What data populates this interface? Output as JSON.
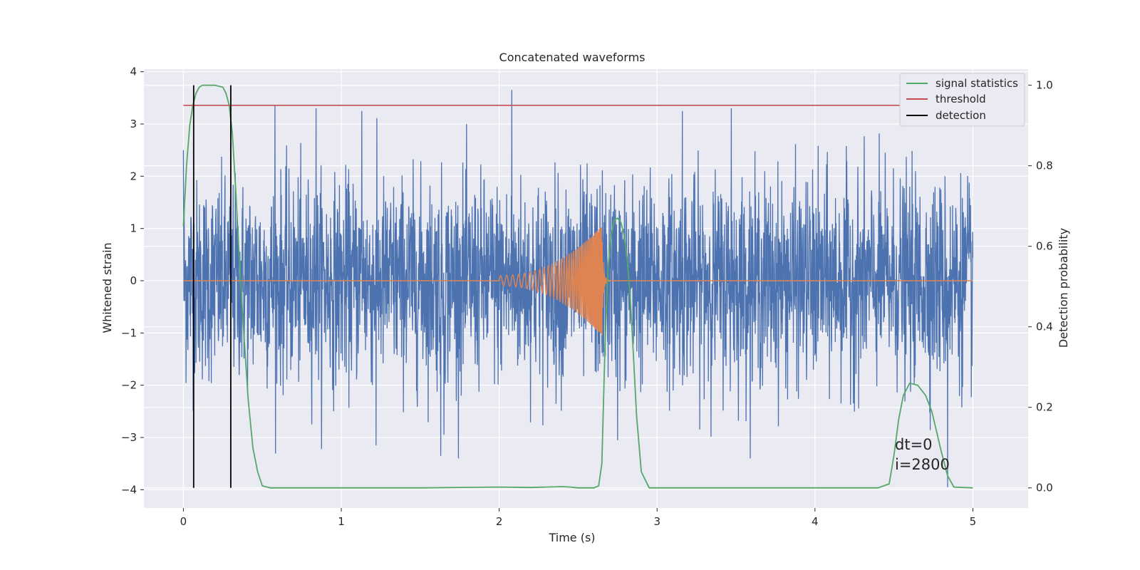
{
  "chart_data": {
    "type": "line",
    "title": "Concatenated waveforms",
    "xlabel": "Time (s)",
    "ylabel": "Whitened strain",
    "y2label": "Detection probability",
    "xlim": [
      -0.25,
      5.35
    ],
    "ylim": [
      -4.35,
      4.05
    ],
    "y2lim": [
      -0.05,
      1.04
    ],
    "x_ticks": [
      "0",
      "1",
      "2",
      "3",
      "4",
      "5"
    ],
    "y_ticks": [
      "4",
      "3",
      "2",
      "1",
      "0",
      "−1",
      "−2",
      "−3",
      "−4"
    ],
    "y2_ticks": [
      "1.0",
      "0.8",
      "0.6",
      "0.4",
      "0.2",
      "0.0"
    ],
    "grid": true,
    "legend_position": "top-right",
    "background": "#eaeaf2",
    "colors": {
      "strain": "#4c72b0",
      "waveform": "#dd8452",
      "signal_statistics": "#55a868",
      "threshold": "#c44e52",
      "detection": "#000000"
    },
    "series": [
      {
        "name": "",
        "axis": "left",
        "description_type": "noise",
        "x_range": [
          0,
          5
        ],
        "envelope_y": [
          -3.4,
          3.7
        ],
        "peaks": [
          [
            0.0,
            2.5
          ],
          [
            0.58,
            3.35
          ],
          [
            0.84,
            3.3
          ],
          [
            1.13,
            3.25
          ],
          [
            2.08,
            3.65
          ],
          [
            3.16,
            3.25
          ],
          [
            3.47,
            3.3
          ],
          [
            4.84,
            -3.95
          ],
          [
            1.22,
            -3.15
          ],
          [
            1.63,
            -3.35
          ],
          [
            2.75,
            -3.05
          ],
          [
            1.65,
            -2.95
          ]
        ]
      },
      {
        "name": "",
        "axis": "left",
        "description_type": "chirp",
        "chirp": {
          "start": 2.0,
          "merger": 2.65,
          "end": 5.0,
          "start_amp": 0.1,
          "peak_amp": 1.05,
          "start_freq": 26,
          "end_freq": 160
        }
      },
      {
        "name": "signal statistics",
        "axis": "right",
        "x": [
          0.0,
          0.02,
          0.04,
          0.06,
          0.08,
          0.1,
          0.12,
          0.15,
          0.2,
          0.25,
          0.27,
          0.29,
          0.31,
          0.33,
          0.35,
          0.38,
          0.41,
          0.44,
          0.47,
          0.5,
          0.55,
          1.0,
          1.5,
          2.0,
          2.2,
          2.4,
          2.45,
          2.5,
          2.6,
          2.63,
          2.65,
          2.67,
          2.69,
          2.71,
          2.73,
          2.75,
          2.77,
          2.79,
          2.81,
          2.83,
          2.85,
          2.87,
          2.9,
          2.95,
          3.0,
          3.5,
          4.0,
          4.4,
          4.47,
          4.5,
          4.53,
          4.56,
          4.6,
          4.65,
          4.7,
          4.74,
          4.77,
          4.8,
          4.84,
          4.88,
          5.0
        ],
        "y": [
          0.65,
          0.8,
          0.9,
          0.95,
          0.98,
          0.995,
          1.0,
          1.0,
          1.0,
          0.995,
          0.98,
          0.95,
          0.88,
          0.75,
          0.6,
          0.4,
          0.22,
          0.1,
          0.04,
          0.005,
          0.0,
          0.0,
          0.0,
          0.002,
          0.001,
          0.003,
          0.002,
          0.0,
          0.0,
          0.005,
          0.06,
          0.35,
          0.55,
          0.63,
          0.665,
          0.67,
          0.66,
          0.63,
          0.57,
          0.47,
          0.33,
          0.18,
          0.04,
          0.0,
          0.0,
          0.0,
          0.0,
          0.0,
          0.01,
          0.08,
          0.17,
          0.23,
          0.26,
          0.255,
          0.23,
          0.19,
          0.14,
          0.09,
          0.03,
          0.002,
          0.0
        ]
      },
      {
        "name": "threshold",
        "axis": "right",
        "x": [
          0,
          5
        ],
        "y": [
          0.95,
          0.95
        ]
      },
      {
        "name": "detection",
        "axis": "right",
        "x_positions": [
          0.065,
          0.3
        ],
        "y_span": [
          0.0,
          1.0
        ]
      }
    ],
    "legend": [
      "signal statistics",
      "threshold",
      "detection"
    ],
    "annotations": [
      "dt=0",
      "i=2800"
    ]
  }
}
